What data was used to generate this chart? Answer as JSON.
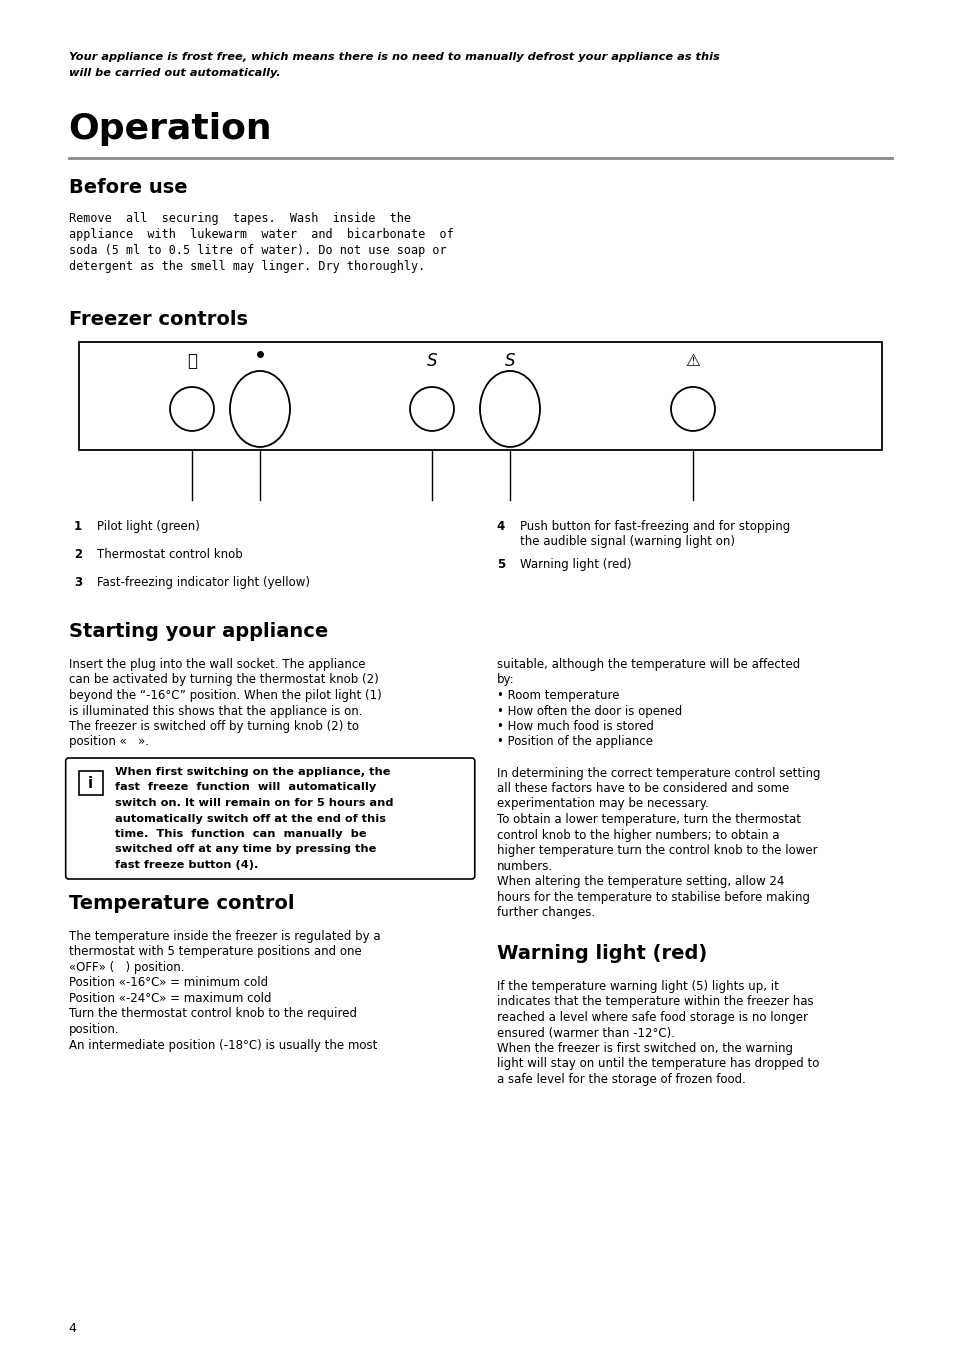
{
  "bg_color": "#ffffff",
  "text_color": "#000000",
  "intro_italic": "Your appliance is frost free, which means there is no need to manually defrost your appliance as this\nwill be carried out automatically.",
  "section_title": "Operation",
  "section_rule_color": "#888888",
  "subsection1": "Before use",
  "before_use_text": "Remove  all  securing  tapes.  Wash  inside  the\nappliance  with  lukewarm  water  and  bicarbonate  of\nsoda (5 ml to 0.5 litre of water). Do not use soap or\ndetergent as the smell may linger. Dry thoroughly.",
  "subsection2": "Freezer controls",
  "label1_num": "1",
  "label1_text": "Pilot light (green)",
  "label2_num": "2",
  "label2_text": "Thermostat control knob",
  "label3_num": "3",
  "label3_text": "Fast-freezing indicator light (yellow)",
  "label4_num": "4",
  "label4_text": "Push button for fast-freezing and for stopping\nthe audible signal (warning light on)",
  "label5_num": "5",
  "label5_text": "Warning light (red)",
  "subsection3": "Starting your appliance",
  "starting_left1": "Insert the plug into the wall socket. The appliance\ncan be activated by turning the thermostat knob (2)\nbeyond the “-16°C” position. When the pilot light (1)\nis illuminated this shows that the appliance is on.\nThe freezer is switched off by turning knob (2) to\nposition «   ».",
  "info_box_text": "When first switching on the appliance, the\nfast  freeze  function  will  automatically\nswitch on. It will remain on for 5 hours and\nautomatically switch off at the end of this\ntime.  This  function  can  manually  be\nswitched off at any time by pressing the\nfast freeze button (4).",
  "starting_right": "suitable, although the temperature will be affected\nby:\n• Room temperature\n• How often the door is opened\n• How much food is stored\n• Position of the appliance\n\nIn determining the correct temperature control setting\nall these factors have to be considered and some\nexperimentation may be necessary.\nTo obtain a lower temperature, turn the thermostat\ncontrol knob to the higher numbers; to obtain a\nhigher temperature turn the control knob to the lower\nnumbers.\nWhen altering the temperature setting, allow 24\nhours for the temperature to stabilise before making\nfurther changes.",
  "subsection4": "Temperature control",
  "temp_text": "The temperature inside the freezer is regulated by a\nthermostat with 5 temperature positions and one\n«OFF» (   ) position.\nPosition «-16°C» = minimum cold\nPosition «-24°C» = maximum cold\nTurn the thermostat control knob to the required\nposition.\nAn intermediate position (-18°C) is usually the most",
  "subsection5": "Warning light (red)",
  "warning_text": "If the temperature warning light (5) lights up, it\nindicates that the temperature within the freezer has\nreached a level where safe food storage is no longer\nensured (warmer than -12°C).\nWhen the freezer is first switched on, the warning\nlight will stay on until the temperature has dropped to\na safe level for the storage of frozen food.",
  "page_num": "4",
  "ml": 0.072,
  "mr": 0.935,
  "cs": 0.505
}
